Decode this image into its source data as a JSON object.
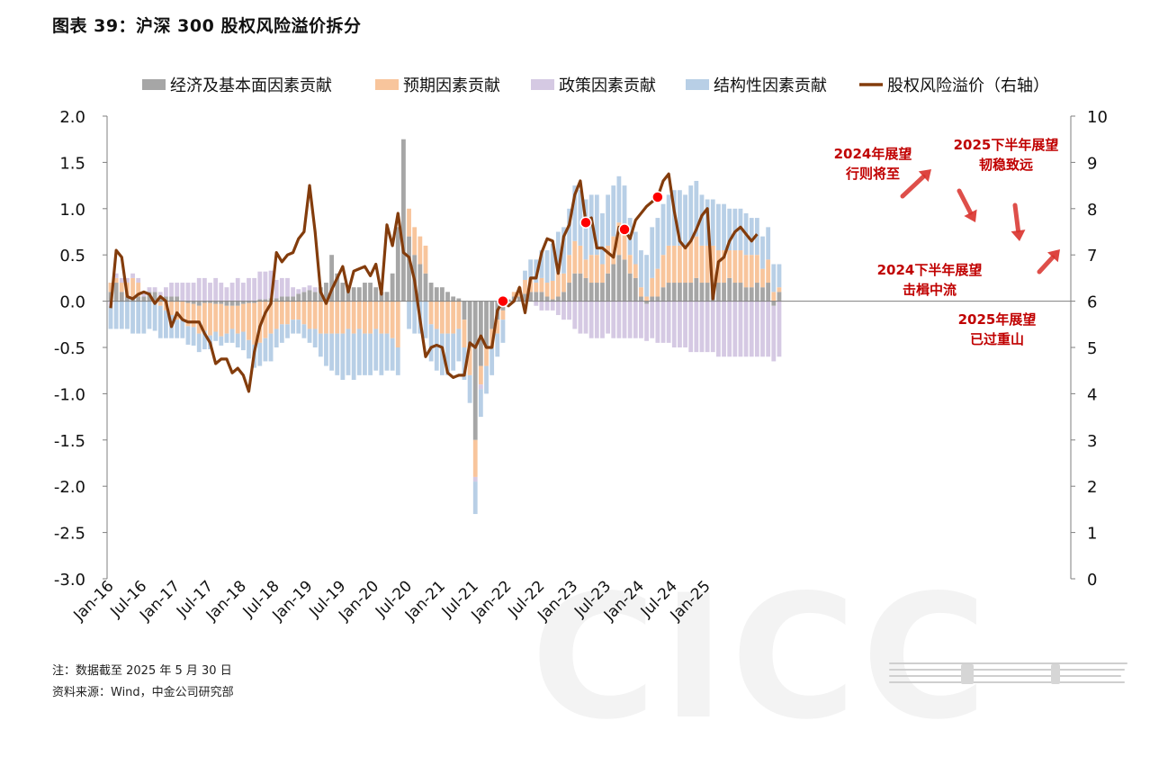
{
  "figure": {
    "title": "图表 39：沪深 300 股权风险溢价拆分",
    "note": "注：数据截至 2025 年 5 月 30 日",
    "source": "资料来源：Wind，中金公司研究部",
    "watermark": "CICC"
  },
  "chart_data": {
    "type": "bar",
    "stacked": true,
    "legend_position": "top",
    "grid": false,
    "colors": {
      "econ": "#a6a6a6",
      "expect": "#f8c59c",
      "policy": "#d5c9e3",
      "struct": "#b8cfe6",
      "erp": "#833c0c",
      "annotation": "#c00000",
      "marker": "#ff0000"
    },
    "x_tick_labels": [
      "Jan-16",
      "Jul-16",
      "Jan-17",
      "Jul-17",
      "Jan-18",
      "Jul-18",
      "Jan-19",
      "Jul-19",
      "Jan-20",
      "Jul-20",
      "Jan-21",
      "Jul-21",
      "Jan-22",
      "Jul-22",
      "Jan-23",
      "Jul-23",
      "Jan-24",
      "Jul-24",
      "Jan-25"
    ],
    "y_left": {
      "lim": [
        -3.0,
        2.0
      ],
      "tick_labels": [
        "2.0",
        "1.5",
        "1.0",
        "0.5",
        "0.0",
        "-0.5",
        "-1.0",
        "-1.5",
        "-2.0",
        "-2.5",
        "-3.0"
      ]
    },
    "y_right": {
      "lim": [
        0,
        10
      ],
      "tick_labels": [
        "10",
        "9",
        "8",
        "7",
        "6",
        "5",
        "4",
        "3",
        "2",
        "1",
        "0"
      ]
    },
    "series": [
      {
        "key": "econ",
        "name": "经济及基本面因素贡献",
        "values": [
          0.1,
          0.2,
          0.1,
          0.05,
          0.05,
          0.05,
          0.05,
          0.1,
          0.1,
          0.05,
          0.05,
          0.05,
          0.05,
          0,
          -0.02,
          -0.03,
          -0.05,
          -0.02,
          -0.02,
          -0.03,
          -0.03,
          -0.05,
          -0.05,
          -0.05,
          -0.03,
          -0.02,
          -0.02,
          0.02,
          0.02,
          0.03,
          0.03,
          0.05,
          0.05,
          0.05,
          0.08,
          0.1,
          0.12,
          0.1,
          0.15,
          0.2,
          0.5,
          0.3,
          0.2,
          0.15,
          0.15,
          0.15,
          0.2,
          0.2,
          0.15,
          0.1,
          0.1,
          0.3,
          0.8,
          1.75,
          0.7,
          0.5,
          0.4,
          0.3,
          0.2,
          0.15,
          0.15,
          0.1,
          0.05,
          0.03,
          -0.2,
          -0.5,
          -1.5,
          -0.7,
          -0.5,
          -0.3,
          -0.2,
          -0.1,
          0.02,
          0.05,
          0.05,
          0.08,
          0.1,
          0.1,
          0.1,
          0.05,
          0.02,
          0.05,
          0.1,
          0.2,
          0.3,
          0.3,
          0.25,
          0.2,
          0.2,
          0.2,
          0.3,
          0.4,
          0.5,
          0.45,
          0.3,
          0.25,
          0.05,
          -0.03,
          0.05,
          0.05,
          0.15,
          0.2,
          0.2,
          0.2,
          0.2,
          0.2,
          0.25,
          0.2,
          0.2,
          0.2,
          0.2,
          0.2,
          0.25,
          0.2,
          0.2,
          0.15,
          0.15,
          0.2,
          0.15,
          0.2,
          -0.05,
          0.1
        ]
      },
      {
        "key": "expect",
        "name": "预期因素贡献",
        "values": [
          0.1,
          0.05,
          0.1,
          0.15,
          0.2,
          0.15,
          0,
          0,
          -0.02,
          -0.05,
          -0.1,
          -0.15,
          -0.2,
          -0.2,
          -0.25,
          -0.25,
          -0.3,
          -0.3,
          -0.35,
          -0.3,
          -0.35,
          -0.3,
          -0.25,
          -0.3,
          -0.3,
          -0.4,
          -0.45,
          -0.45,
          -0.4,
          -0.35,
          -0.3,
          -0.25,
          -0.25,
          -0.2,
          -0.2,
          -0.25,
          -0.3,
          -0.3,
          -0.35,
          -0.35,
          -0.35,
          -0.35,
          -0.35,
          -0.3,
          -0.35,
          -0.3,
          -0.35,
          -0.35,
          -0.3,
          -0.35,
          -0.35,
          -0.4,
          -0.5,
          0,
          0.3,
          0.3,
          0.3,
          0.3,
          -0.25,
          -0.3,
          -0.35,
          -0.35,
          -0.35,
          -0.3,
          -0.3,
          -0.3,
          -0.4,
          -0.2,
          -0.2,
          -0.2,
          -0.15,
          -0.1,
          0,
          0.05,
          0.1,
          0.15,
          0.15,
          0.1,
          0.15,
          0.15,
          0.2,
          0.25,
          0.2,
          0.3,
          0.35,
          0.3,
          0.2,
          0.3,
          0.3,
          0.2,
          0.3,
          0.3,
          0.35,
          0.35,
          0.2,
          0.15,
          0.1,
          0.05,
          0.2,
          0.3,
          0.35,
          0.4,
          0.4,
          0.4,
          0.4,
          0.45,
          0.45,
          0.4,
          0.4,
          0.4,
          0.35,
          0.35,
          0.3,
          0.35,
          0.35,
          0.35,
          0.35,
          0.3,
          0.2,
          0.25,
          0.1,
          0.05
        ]
      },
      {
        "key": "policy",
        "name": "政策因素贡献",
        "values": [
          -0.05,
          0.05,
          0.05,
          0.05,
          0.05,
          0.05,
          0.05,
          0.05,
          0.05,
          0.05,
          0.1,
          0.15,
          0.15,
          0.2,
          0.2,
          0.2,
          0.25,
          0.25,
          0.2,
          0.25,
          0.2,
          0.15,
          0.2,
          0.25,
          0.2,
          0.25,
          0.25,
          0.3,
          0.3,
          0.3,
          0.2,
          0.2,
          0.2,
          0.1,
          0.05,
          0.05,
          0.05,
          0.05,
          0,
          0,
          0,
          0,
          0,
          0,
          0,
          0,
          0,
          0,
          0,
          0,
          0,
          0,
          0,
          0,
          0,
          0,
          0,
          0,
          0,
          0,
          0,
          0,
          0,
          0,
          0,
          0,
          -0.05,
          -0.05,
          0,
          0,
          0,
          0,
          0,
          0,
          0,
          0,
          0,
          -0.05,
          -0.1,
          -0.1,
          -0.1,
          -0.15,
          -0.2,
          -0.2,
          -0.3,
          -0.35,
          -0.35,
          -0.4,
          -0.4,
          -0.4,
          -0.35,
          -0.4,
          -0.4,
          -0.4,
          -0.4,
          -0.4,
          -0.4,
          -0.4,
          -0.4,
          -0.45,
          -0.45,
          -0.45,
          -0.5,
          -0.5,
          -0.5,
          -0.55,
          -0.55,
          -0.55,
          -0.55,
          -0.55,
          -0.6,
          -0.6,
          -0.6,
          -0.6,
          -0.6,
          -0.6,
          -0.6,
          -0.6,
          -0.6,
          -0.6,
          -0.6,
          -0.6
        ]
      },
      {
        "key": "struct",
        "name": "结构性因素贡献",
        "values": [
          -0.25,
          -0.3,
          -0.3,
          -0.3,
          -0.35,
          -0.35,
          -0.35,
          -0.3,
          -0.3,
          -0.35,
          -0.3,
          -0.25,
          -0.2,
          -0.2,
          -0.2,
          -0.2,
          -0.2,
          -0.2,
          -0.15,
          -0.1,
          -0.1,
          -0.1,
          -0.15,
          -0.15,
          -0.2,
          -0.2,
          -0.25,
          -0.25,
          -0.25,
          -0.3,
          -0.2,
          -0.2,
          -0.15,
          -0.15,
          -0.15,
          -0.15,
          -0.15,
          -0.2,
          -0.25,
          -0.35,
          -0.4,
          -0.45,
          -0.5,
          -0.5,
          -0.5,
          -0.5,
          -0.45,
          -0.45,
          -0.45,
          -0.45,
          -0.4,
          -0.35,
          -0.3,
          0,
          -0.3,
          -0.35,
          -0.35,
          -0.4,
          -0.4,
          -0.45,
          -0.45,
          -0.45,
          -0.4,
          -0.35,
          -0.35,
          -0.3,
          -0.35,
          -0.3,
          -0.3,
          -0.3,
          -0.25,
          -0.25,
          0,
          0,
          0,
          0.1,
          0.2,
          0.25,
          0.3,
          0.35,
          0.4,
          0.45,
          0.5,
          0.5,
          0.6,
          0.6,
          0.65,
          0.65,
          0.65,
          0.55,
          0.55,
          0.55,
          0.5,
          0.45,
          0.4,
          0.35,
          0.4,
          0.45,
          0.55,
          0.55,
          0.55,
          0.55,
          0.6,
          0.6,
          0.55,
          0.6,
          0.6,
          0.55,
          0.5,
          0.5,
          0.5,
          0.5,
          0.45,
          0.45,
          0.45,
          0.45,
          0.4,
          0.4,
          0.35,
          0.35,
          0.3,
          0.25
        ]
      },
      {
        "key": "erp",
        "name": "股权风险溢价（右轴）",
        "axis": "right",
        "type": "line",
        "values": [
          5.85,
          7.1,
          6.95,
          6.1,
          6.05,
          6.15,
          6.2,
          6.15,
          5.95,
          6.1,
          6.0,
          5.45,
          5.75,
          5.6,
          5.55,
          5.55,
          5.55,
          5.3,
          5.1,
          4.65,
          4.75,
          4.75,
          4.45,
          4.55,
          4.4,
          4.05,
          4.9,
          5.45,
          5.75,
          5.95,
          7.05,
          6.85,
          7.0,
          7.05,
          7.35,
          7.5,
          8.5,
          7.5,
          6.2,
          5.95,
          6.25,
          6.5,
          6.75,
          6.2,
          6.65,
          6.7,
          6.75,
          6.55,
          6.8,
          6.15,
          7.65,
          7.2,
          7.9,
          7.05,
          6.95,
          6.45,
          5.6,
          4.8,
          5.0,
          5.05,
          5.0,
          4.45,
          4.35,
          4.4,
          4.4,
          5.1,
          5.0,
          5.25,
          5.0,
          5.0,
          5.8,
          6.0,
          5.9,
          6.0,
          6.3,
          5.75,
          6.5,
          6.5,
          7.05,
          7.35,
          7.3,
          6.6,
          7.4,
          7.65,
          8.3,
          8.6,
          7.7,
          7.8,
          7.15,
          7.15,
          7.05,
          6.95,
          7.6,
          7.55,
          7.35,
          7.75,
          7.9,
          8.05,
          8.15,
          8.25,
          8.6,
          8.75,
          7.95,
          7.3,
          7.15,
          7.3,
          7.55,
          7.85,
          8.0,
          6.05,
          6.85,
          6.95,
          7.3,
          7.5,
          7.6,
          7.45,
          7.3,
          7.45
        ]
      }
    ],
    "markers_on_line": [
      71,
      86,
      93,
      99
    ],
    "annotations": [
      {
        "id": "ann2024",
        "lines": [
          "2024年展望",
          "行则将至"
        ]
      },
      {
        "id": "ann2025h2",
        "lines": [
          "2025下半年展望",
          "韧稳致远"
        ]
      },
      {
        "id": "ann2024h2",
        "lines": [
          "2024下半年展望",
          "击楫中流"
        ]
      },
      {
        "id": "ann2025",
        "lines": [
          "2025年展望",
          "已过重山"
        ]
      }
    ]
  }
}
